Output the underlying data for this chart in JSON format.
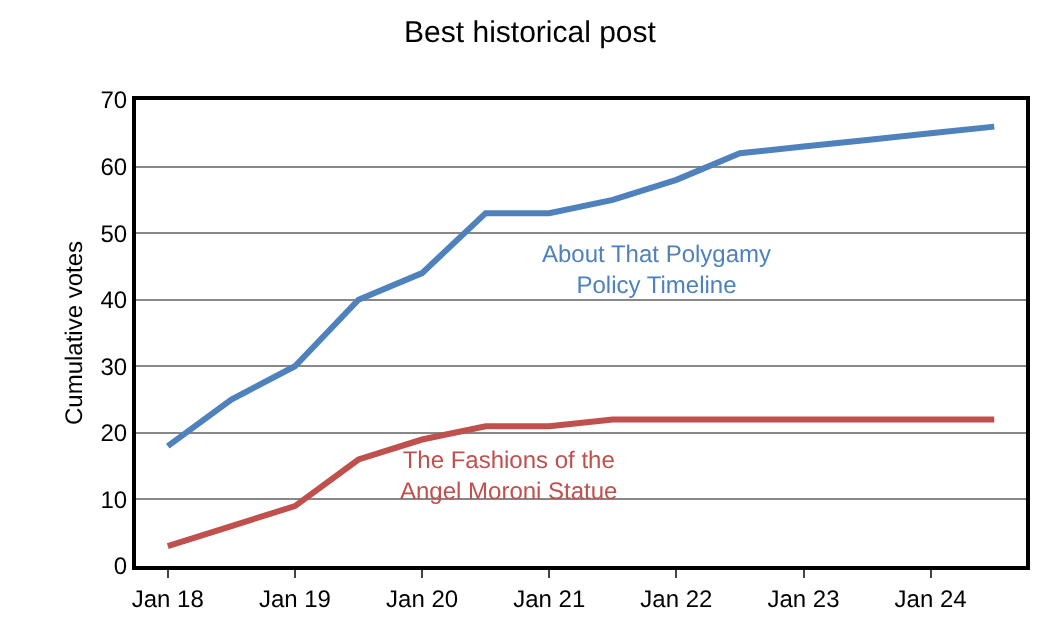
{
  "chart_data": {
    "type": "line",
    "title": "Best historical post",
    "ylabel": "Cumulative votes",
    "categories": [
      "Jan 18",
      null,
      "Jan 19",
      null,
      "Jan 20",
      null,
      "Jan 21",
      null,
      "Jan 22",
      null,
      "Jan 23",
      null,
      "Jan 24",
      null
    ],
    "series": [
      {
        "name": "About That Polygamy Policy Timeline",
        "color": "#4f81bd",
        "values": [
          18,
          25,
          30,
          40,
          44,
          53,
          53,
          55,
          58,
          62,
          63,
          64,
          65,
          66
        ]
      },
      {
        "name": "The Fashions of the Angel Moroni Statue",
        "color": "#c0504d",
        "values": [
          3,
          6,
          9,
          16,
          19,
          21,
          21,
          22,
          22,
          22,
          22,
          22,
          22,
          22
        ]
      }
    ],
    "ylim": [
      0,
      70
    ],
    "yticks": [
      0,
      10,
      20,
      30,
      40,
      50,
      60,
      70
    ],
    "grid": "y",
    "legend": false,
    "marker": "none",
    "line_style": "solid"
  }
}
